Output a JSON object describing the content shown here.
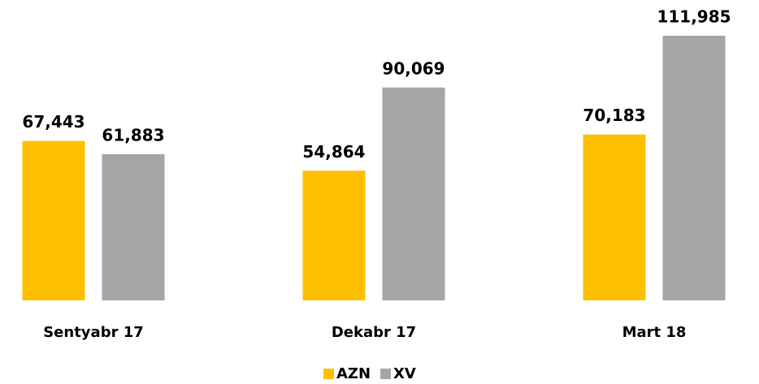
{
  "chart_data": {
    "type": "bar",
    "categories": [
      "Sentyabr 17",
      "Dekabr 17",
      "Mart 18"
    ],
    "series": [
      {
        "name": "AZN",
        "color": "#ffc000",
        "values": [
          67443,
          54864,
          70183
        ],
        "value_labels": [
          "67,443",
          "54,864",
          "70,183"
        ]
      },
      {
        "name": "XV",
        "color": "#a5a5a5",
        "values": [
          61883,
          90069,
          111985
        ],
        "value_labels": [
          "61,883",
          "90,069",
          "111,985"
        ]
      }
    ],
    "legend": "bottom"
  }
}
